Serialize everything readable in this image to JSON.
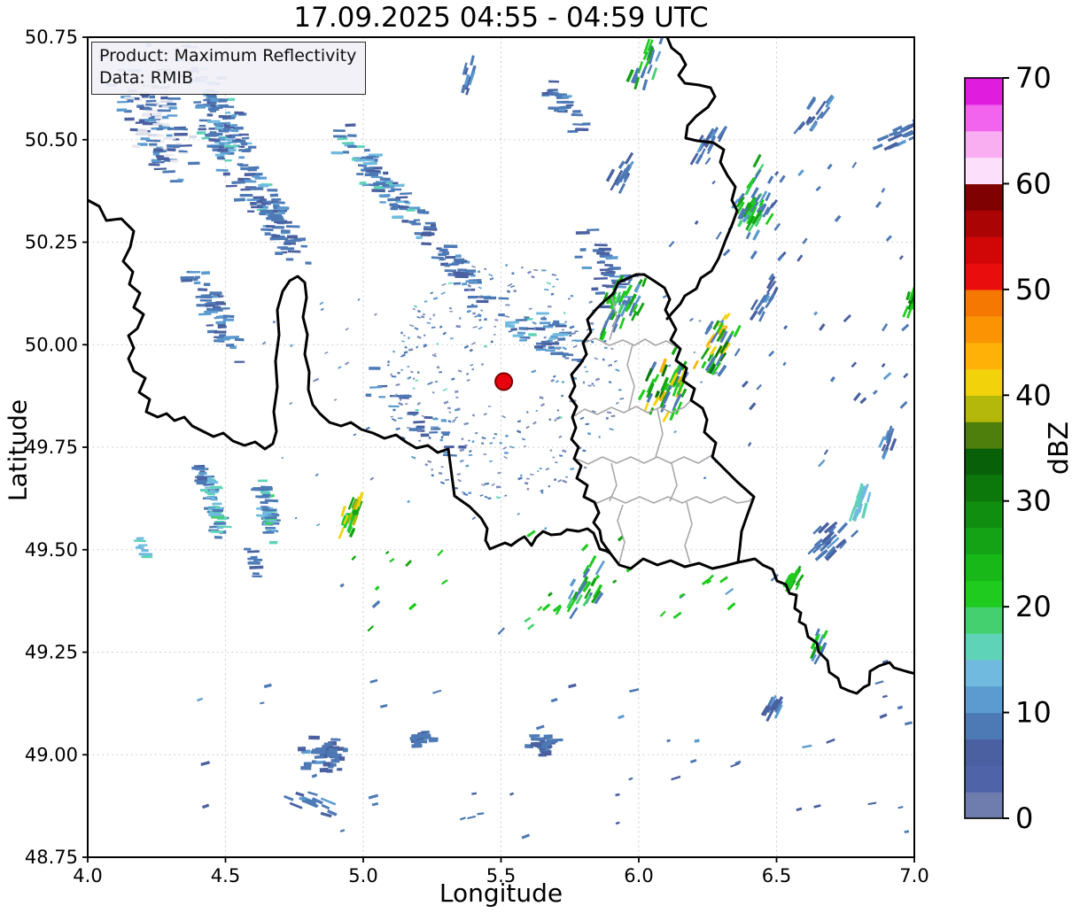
{
  "title": "17.09.2025 04:55 - 04:59 UTC",
  "info_box": {
    "line1": "Product: Maximum Reflectivity",
    "line2": "Data: RMIB"
  },
  "chart_data": {
    "type": "map-radar-reflectivity",
    "title": "17.09.2025 04:55 - 04:59 UTC",
    "xlabel": "Longitude",
    "ylabel": "Latitude",
    "xlim": [
      4.0,
      7.0
    ],
    "ylim": [
      48.75,
      50.75
    ],
    "grid": "dashed",
    "x_ticks": [
      4.0,
      4.5,
      5.0,
      5.5,
      6.0,
      6.5,
      7.0
    ],
    "x_tick_labels": [
      "4.0",
      "4.5",
      "5.0",
      "5.5",
      "6.0",
      "6.5",
      "7.0"
    ],
    "y_ticks": [
      48.75,
      49.0,
      49.25,
      49.5,
      49.75,
      50.0,
      50.25,
      50.5,
      50.75
    ],
    "y_tick_labels": [
      "48.75",
      "49.00",
      "49.25",
      "49.50",
      "49.75",
      "50.00",
      "50.25",
      "50.50",
      "50.75"
    ],
    "colorbar": {
      "label": "dBZ",
      "min": 0,
      "max": 70,
      "segment_size": 2.5,
      "tick_values": [
        0,
        10,
        20,
        30,
        40,
        50,
        60,
        70
      ],
      "tick_labels": [
        "0",
        "10",
        "20",
        "30",
        "40",
        "50",
        "60",
        "70"
      ],
      "colors": [
        "#6e7dad",
        "#4f64a8",
        "#4a60a0",
        "#4d79b5",
        "#5b9bd0",
        "#6fbade",
        "#5ed3b8",
        "#44d06e",
        "#1fcb1f",
        "#18b818",
        "#14a314",
        "#108e10",
        "#0c780c",
        "#086008",
        "#4e7f0c",
        "#b3b80a",
        "#f2d20a",
        "#ffb108",
        "#fb9303",
        "#f47801",
        "#ea0d0d",
        "#d10707",
        "#ab0404",
        "#800101",
        "#fcdffa",
        "#f9aef2",
        "#f263ee",
        "#e01ddf"
      ]
    },
    "radar_site": {
      "lon": 5.51,
      "lat": 49.91,
      "color": "#e8000e",
      "edge_color": "#7a0000"
    },
    "border_colors": {
      "country": "#000000",
      "region": "#a8a8a8"
    },
    "gridline_color": "#cfcfcf",
    "palettes": {
      "blue": [
        [
          "#4d79b5",
          5
        ],
        [
          "#4a60a0",
          3
        ],
        [
          "#5b9bd0",
          2
        ]
      ],
      "blue_pale": [
        [
          "#4d79b5",
          4
        ],
        [
          "#4a60a0",
          3
        ],
        [
          "#5b9bd0",
          2
        ],
        [
          "#e9e9f0",
          3
        ],
        [
          "#d8dce8",
          2
        ]
      ],
      "blue_cyan": [
        [
          "#4d79b5",
          5
        ],
        [
          "#4a60a0",
          2
        ],
        [
          "#5b9bd0",
          2
        ],
        [
          "#6fbade",
          2
        ],
        [
          "#5ed3b8",
          1
        ]
      ],
      "teal_core": [
        [
          "#5ed3b8",
          3
        ],
        [
          "#6fbade",
          3
        ],
        [
          "#4d79b5",
          4
        ],
        [
          "#44d06e",
          1
        ]
      ],
      "green_blue": [
        [
          "#1fcb1f",
          3
        ],
        [
          "#14a314",
          2
        ],
        [
          "#4d79b5",
          3
        ],
        [
          "#5b9bd0",
          1
        ],
        [
          "#44d06e",
          1
        ]
      ],
      "green_orange": [
        [
          "#1fcb1f",
          3
        ],
        [
          "#14a314",
          2
        ],
        [
          "#4d79b5",
          2
        ],
        [
          "#ffb108",
          1
        ],
        [
          "#f2d20a",
          1
        ],
        [
          "#0c780c",
          1
        ]
      ],
      "green_yellow": [
        [
          "#1fcb1f",
          3
        ],
        [
          "#b3b80a",
          1
        ],
        [
          "#f2d20a",
          1
        ],
        [
          "#14a314",
          2
        ],
        [
          "#5ed3b8",
          1
        ]
      ],
      "green": [
        [
          "#1fcb1f",
          3
        ],
        [
          "#14a314",
          2
        ],
        [
          "#0c780c",
          1
        ]
      ],
      "teal": [
        [
          "#5ed3b8",
          3
        ],
        [
          "#6fbade",
          2
        ]
      ],
      "blue_block": [
        [
          "#4d79b5",
          5
        ],
        [
          "#4a60a0",
          3
        ],
        [
          "#5b9bd0",
          1
        ]
      ],
      "speck": [
        [
          "#7d8cbb",
          4
        ],
        [
          "#4d79b5",
          3
        ],
        [
          "#5b9bd0",
          2
        ],
        [
          "#5ed3b8",
          0.4
        ]
      ]
    },
    "echo_clusters": [
      {
        "lon": 4.24,
        "lat": 50.56,
        "len": 180,
        "wid": 70,
        "ang": 65,
        "n": 130,
        "pal": "blue_pale"
      },
      {
        "lon": 4.5,
        "lat": 50.52,
        "len": 230,
        "wid": 62,
        "ang": 62,
        "n": 150,
        "pal": "blue_cyan"
      },
      {
        "lon": 4.68,
        "lat": 50.3,
        "len": 150,
        "wid": 42,
        "ang": 64,
        "n": 75,
        "pal": "blue"
      },
      {
        "lon": 5.06,
        "lat": 50.4,
        "len": 170,
        "wid": 36,
        "ang": 48,
        "n": 80,
        "pal": "blue_cyan"
      },
      {
        "lon": 5.34,
        "lat": 50.19,
        "len": 150,
        "wid": 30,
        "ang": 52,
        "n": 55,
        "pal": "blue"
      },
      {
        "lon": 4.47,
        "lat": 50.07,
        "len": 130,
        "wid": 34,
        "ang": 60,
        "n": 55,
        "pal": "blue"
      },
      {
        "lon": 5.19,
        "lat": 49.82,
        "len": 170,
        "wid": 40,
        "ang": 40,
        "n": 30,
        "pal": "blue"
      },
      {
        "lon": 5.64,
        "lat": 50.03,
        "len": 130,
        "wid": 46,
        "ang": 35,
        "n": 50,
        "pal": "blue_cyan"
      },
      {
        "type": "ring",
        "lon": 5.51,
        "lat": 49.91,
        "r0": 28,
        "r1": 135,
        "n": 300,
        "pal": "speck"
      },
      {
        "lon": 5.87,
        "lat": 50.19,
        "len": 110,
        "wid": 60,
        "ang": 55,
        "n": 40,
        "pal": "blue"
      },
      {
        "lon": 5.95,
        "lat": 50.1,
        "len": 95,
        "wid": 52,
        "ang": -65,
        "n": 40,
        "pal": "green_blue",
        "sa": -65
      },
      {
        "lon": 6.11,
        "lat": 49.91,
        "len": 100,
        "wid": 60,
        "ang": -65,
        "n": 50,
        "pal": "green_orange",
        "sa": -65
      },
      {
        "lon": 6.29,
        "lat": 50.0,
        "len": 90,
        "wid": 42,
        "ang": -60,
        "n": 35,
        "pal": "green_orange",
        "sa": -60
      },
      {
        "lon": 6.42,
        "lat": 50.34,
        "len": 110,
        "wid": 52,
        "ang": -60,
        "n": 48,
        "pal": "green_blue",
        "sa": -60
      },
      {
        "lon": 6.25,
        "lat": 50.49,
        "len": 60,
        "wid": 30,
        "ang": -60,
        "n": 16,
        "pal": "blue",
        "sa": -60
      },
      {
        "lon": 6.03,
        "lat": 50.69,
        "len": 70,
        "wid": 28,
        "ang": -70,
        "n": 20,
        "pal": "green_blue",
        "sa": -70
      },
      {
        "lon": 6.64,
        "lat": 50.57,
        "len": 60,
        "wid": 26,
        "ang": -55,
        "n": 15,
        "pal": "blue",
        "sa": -55
      },
      {
        "lon": 6.96,
        "lat": 50.52,
        "len": 70,
        "wid": 28,
        "ang": -25,
        "n": 20,
        "pal": "blue",
        "sa": -25
      },
      {
        "lon": 6.46,
        "lat": 50.11,
        "len": 60,
        "wid": 26,
        "ang": -60,
        "n": 14,
        "pal": "blue",
        "sa": -60
      },
      {
        "lon": 6.99,
        "lat": 50.11,
        "len": 44,
        "wid": 16,
        "ang": -70,
        "n": 10,
        "pal": "green",
        "sa": -70
      },
      {
        "lon": 4.46,
        "lat": 49.61,
        "len": 86,
        "wid": 16,
        "ang": 78,
        "n": 60,
        "pal": "teal_core"
      },
      {
        "lon": 4.65,
        "lat": 49.6,
        "len": 90,
        "wid": 16,
        "ang": 78,
        "n": 60,
        "pal": "teal_core"
      },
      {
        "lon": 4.41,
        "lat": 49.69,
        "len": 34,
        "wid": 10,
        "ang": 75,
        "n": 12,
        "pal": "blue"
      },
      {
        "lon": 4.96,
        "lat": 49.58,
        "len": 60,
        "wid": 24,
        "ang": -70,
        "n": 22,
        "pal": "green_yellow",
        "sa": -70
      },
      {
        "lon": 4.2,
        "lat": 49.5,
        "len": 30,
        "wid": 10,
        "ang": 80,
        "n": 8,
        "pal": "teal"
      },
      {
        "lon": 4.6,
        "lat": 49.47,
        "len": 40,
        "wid": 14,
        "ang": 75,
        "n": 10,
        "pal": "blue"
      },
      {
        "lon": 4.81,
        "lat": 48.88,
        "len": 60,
        "wid": 30,
        "ang": 35,
        "n": 16,
        "pal": "blue",
        "sa": 20
      },
      {
        "type": "block",
        "lon": 4.86,
        "lat": 49.0,
        "len": 55,
        "wid": 42,
        "ang": 10,
        "n": 45,
        "pal": "blue_block"
      },
      {
        "type": "block",
        "lon": 5.65,
        "lat": 49.02,
        "len": 42,
        "wid": 26,
        "ang": 0,
        "n": 28,
        "pal": "blue_block"
      },
      {
        "type": "block",
        "lon": 5.22,
        "lat": 49.04,
        "len": 30,
        "wid": 18,
        "ang": 0,
        "n": 15,
        "pal": "blue_block"
      },
      {
        "type": "scatter",
        "lon0": 4.3,
        "lon1": 6.98,
        "lat0": 48.8,
        "lat1": 49.25,
        "n": 45,
        "pal": "blue",
        "sa": -15
      },
      {
        "lon": 5.8,
        "lat": 49.4,
        "len": 80,
        "wid": 44,
        "ang": -60,
        "n": 25,
        "pal": "green_blue",
        "sa": -60
      },
      {
        "type": "scatter",
        "lon0": 4.9,
        "lon1": 6.6,
        "lat0": 49.3,
        "lat1": 49.55,
        "n": 35,
        "pal": "green_blue",
        "sa": -40
      },
      {
        "lon": 6.8,
        "lat": 49.61,
        "len": 60,
        "wid": 18,
        "ang": -72,
        "n": 18,
        "pal": "teal",
        "sa": -72
      },
      {
        "lon": 6.69,
        "lat": 49.52,
        "len": 60,
        "wid": 40,
        "ang": -45,
        "n": 25,
        "pal": "blue_block",
        "sa": -45
      },
      {
        "lon": 6.91,
        "lat": 49.77,
        "len": 40,
        "wid": 16,
        "ang": -70,
        "n": 10,
        "pal": "blue",
        "sa": -70
      },
      {
        "lon": 6.56,
        "lat": 49.43,
        "len": 40,
        "wid": 20,
        "ang": -60,
        "n": 12,
        "pal": "green",
        "sa": -60
      },
      {
        "lon": 6.66,
        "lat": 49.27,
        "len": 50,
        "wid": 20,
        "ang": -65,
        "n": 14,
        "pal": "green_blue",
        "sa": -65
      },
      {
        "lon": 6.48,
        "lat": 49.11,
        "len": 40,
        "wid": 18,
        "ang": -60,
        "n": 10,
        "pal": "blue",
        "sa": -60
      },
      {
        "type": "scatter",
        "lon0": 6.3,
        "lon1": 7.0,
        "lat0": 49.7,
        "lat1": 50.1,
        "n": 25,
        "pal": "blue",
        "sa": -50
      },
      {
        "type": "scatter",
        "lon0": 6.1,
        "lon1": 7.0,
        "lat0": 50.2,
        "lat1": 50.45,
        "n": 25,
        "pal": "blue",
        "sa": -50
      },
      {
        "lon": 5.38,
        "lat": 50.65,
        "len": 56,
        "wid": 14,
        "ang": -75,
        "n": 10,
        "pal": "blue",
        "sa": -75
      },
      {
        "lon": 5.74,
        "lat": 50.58,
        "len": 95,
        "wid": 30,
        "ang": 55,
        "n": 28,
        "pal": "blue"
      },
      {
        "lon": 5.93,
        "lat": 50.41,
        "len": 60,
        "wid": 22,
        "ang": -60,
        "n": 14,
        "pal": "blue",
        "sa": -60
      },
      {
        "type": "scatter",
        "lon0": 4.6,
        "lon1": 6.3,
        "lat0": 49.55,
        "lat1": 50.12,
        "n": 60,
        "pal": "speck",
        "sa": -30,
        "tiny": true
      }
    ]
  }
}
